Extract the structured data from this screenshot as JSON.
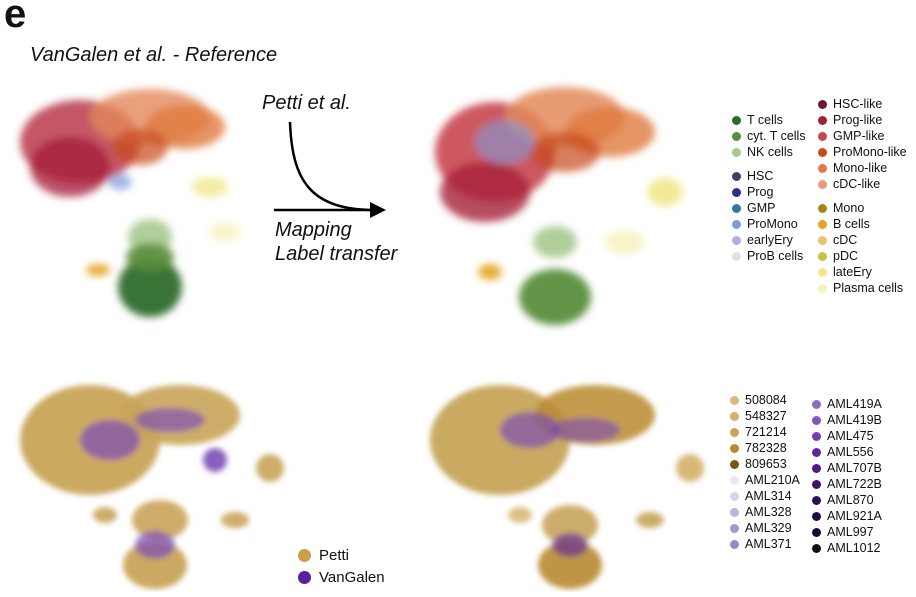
{
  "figure": {
    "panel_letter": "e",
    "subtitle": "VanGalen et al. - Reference",
    "query_label": "Petti et al.",
    "mapping_line1": "Mapping",
    "mapping_line2": "Label transfer"
  },
  "celltype_legend": {
    "col1": [
      [
        {
          "label": "T cells",
          "color": "#2e6b2a"
        },
        {
          "label": "cyt. T cells",
          "color": "#5a8e3c"
        },
        {
          "label": "NK cells",
          "color": "#a7c98e"
        }
      ],
      [
        {
          "label": "HSC",
          "color": "#3c3f6b"
        },
        {
          "label": "Prog",
          "color": "#2a2e8f"
        },
        {
          "label": "GMP",
          "color": "#2e78a6"
        },
        {
          "label": "ProMono",
          "color": "#7f9bd8"
        },
        {
          "label": "earlyEry",
          "color": "#b0aee0"
        },
        {
          "label": "ProB cells",
          "color": "#e1e1e1"
        }
      ]
    ],
    "col2": [
      [
        {
          "label": "HSC-like",
          "color": "#6b1a2a"
        },
        {
          "label": "Prog-like",
          "color": "#a61e3a"
        },
        {
          "label": "GMP-like",
          "color": "#c8464f"
        },
        {
          "label": "ProMono-like",
          "color": "#c84a1e"
        },
        {
          "label": "Mono-like",
          "color": "#e37a4a"
        },
        {
          "label": "cDC-like",
          "color": "#e99a7a"
        }
      ],
      [
        {
          "label": "Mono",
          "color": "#a8841e"
        },
        {
          "label": "B cells",
          "color": "#e6a31e"
        },
        {
          "label": "cDC",
          "color": "#e9c46a"
        },
        {
          "label": "pDC",
          "color": "#c9c23a"
        },
        {
          "label": "lateEry",
          "color": "#f0e88a"
        },
        {
          "label": "Plasma cells",
          "color": "#f7f2c2"
        }
      ]
    ]
  },
  "sample_legend": {
    "col1": [
      {
        "label": "508084",
        "color": "#d9b878"
      },
      {
        "label": "548327",
        "color": "#d4b068"
      },
      {
        "label": "721214",
        "color": "#c7a45a"
      },
      {
        "label": "782328",
        "color": "#b88a30"
      },
      {
        "label": "809653",
        "color": "#7a5418"
      },
      {
        "label": "AML210A",
        "color": "#eae8f2"
      },
      {
        "label": "AML314",
        "color": "#d8d2e8"
      },
      {
        "label": "AML328",
        "color": "#bfb2dc"
      },
      {
        "label": "AML329",
        "color": "#a895d0"
      },
      {
        "label": "AML371",
        "color": "#9a86c8"
      }
    ],
    "col2": [
      {
        "label": "AML419A",
        "color": "#8c6cc4"
      },
      {
        "label": "AML419B",
        "color": "#7e58bc"
      },
      {
        "label": "AML475",
        "color": "#7040b0"
      },
      {
        "label": "AML556",
        "color": "#5c28a0"
      },
      {
        "label": "AML707B",
        "color": "#4a1a8a"
      },
      {
        "label": "AML722B",
        "color": "#3a1270"
      },
      {
        "label": "AML870",
        "color": "#2c0e58"
      },
      {
        "label": "AML921A",
        "color": "#220a44"
      },
      {
        "label": "AML997",
        "color": "#1a0830"
      },
      {
        "label": "AML1012",
        "color": "#111111"
      }
    ]
  },
  "dataset_legend": [
    {
      "label": "Petti",
      "color": "#c9a04a"
    },
    {
      "label": "VanGalen",
      "color": "#5a1fa0"
    }
  ]
}
